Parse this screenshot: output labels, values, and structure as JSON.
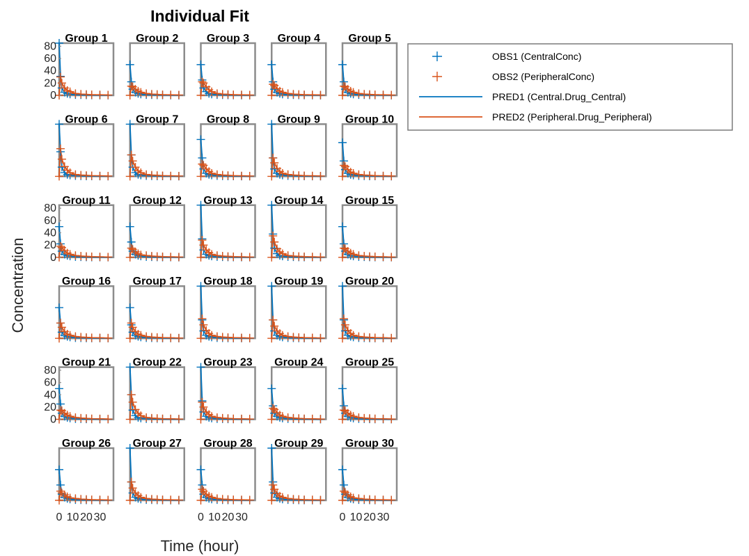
{
  "chart_data": {
    "type": "line",
    "title": "Individual Fit",
    "xlabel": "Time (hour)",
    "ylabel": "Concentration",
    "xlim": [
      0,
      40
    ],
    "ylim": [
      0,
      85
    ],
    "x_ticks": [
      0,
      10,
      20,
      30
    ],
    "x_tick_labels": [
      "0",
      "10",
      "20",
      "30"
    ],
    "y_ticks": [
      0,
      20,
      40,
      60,
      80
    ],
    "y_tick_labels": [
      "0",
      "20",
      "40",
      "60",
      "80"
    ],
    "grid": false,
    "legend_position": "outside-top-right",
    "series_meta": [
      {
        "key": "obs1",
        "name": "OBS1 (CentralConc)",
        "color": "#0072BD",
        "style": "marker-plus"
      },
      {
        "key": "obs2",
        "name": "OBS2 (PeripheralConc)",
        "color": "#D95319",
        "style": "marker-plus"
      },
      {
        "key": "pred1",
        "name": "PRED1 (Central.Drug_Central)",
        "color": "#0072BD",
        "style": "line"
      },
      {
        "key": "pred2",
        "name": "PRED2 (Peripheral.Drug_Peripheral)",
        "color": "#D95319",
        "style": "line"
      }
    ],
    "sample_times": [
      0,
      1,
      2,
      4,
      6,
      8,
      12,
      16,
      20,
      24,
      30,
      36
    ],
    "panels": [
      {
        "title": "Group 1",
        "central": [
          85,
          31,
          12,
          5,
          3,
          2,
          1,
          0.8,
          0.5,
          0.4,
          0.3,
          0.2
        ],
        "peripheral": [
          0,
          30,
          20,
          12,
          8,
          6,
          3,
          2,
          1.5,
          1,
          0.8,
          0.5
        ]
      },
      {
        "title": "Group 2",
        "central": [
          50,
          22,
          10,
          5,
          3,
          2,
          1,
          0.8,
          0.5,
          0.4,
          0.3,
          0.2
        ],
        "peripheral": [
          0,
          15,
          14,
          10,
          7,
          5,
          3,
          2,
          1.5,
          1,
          0.8,
          0.5
        ]
      },
      {
        "title": "Group 3",
        "central": [
          50,
          25,
          12,
          6,
          3,
          2,
          1,
          0.8,
          0.5,
          0.4,
          0.3,
          0.2
        ],
        "peripheral": [
          0,
          22,
          20,
          14,
          9,
          6,
          3,
          2,
          1.5,
          1,
          0.8,
          0.5
        ]
      },
      {
        "title": "Group 4",
        "central": [
          50,
          22,
          10,
          5,
          3,
          2,
          1,
          0.8,
          0.5,
          0.4,
          0.3,
          0.2
        ],
        "peripheral": [
          0,
          18,
          16,
          11,
          7,
          5,
          3,
          2,
          1.5,
          1,
          0.8,
          0.5
        ]
      },
      {
        "title": "Group 5",
        "central": [
          50,
          22,
          10,
          5,
          3,
          2,
          1,
          0.8,
          0.5,
          0.4,
          0.3,
          0.2
        ],
        "peripheral": [
          0,
          15,
          14,
          10,
          7,
          5,
          3,
          2,
          1.5,
          1,
          0.8,
          0.5
        ]
      },
      {
        "title": "Group 6",
        "central": [
          85,
          40,
          15,
          6,
          3,
          2,
          1,
          0.8,
          0.5,
          0.4,
          0.3,
          0.2
        ],
        "peripheral": [
          0,
          45,
          28,
          16,
          10,
          6,
          3,
          2,
          1.5,
          1,
          0.8,
          0.5
        ]
      },
      {
        "title": "Group 7",
        "central": [
          85,
          35,
          15,
          6,
          3,
          2,
          1,
          0.8,
          0.5,
          0.4,
          0.3,
          0.2
        ],
        "peripheral": [
          0,
          35,
          25,
          15,
          9,
          6,
          3,
          2,
          1.5,
          1,
          0.8,
          0.5
        ]
      },
      {
        "title": "Group 8",
        "central": [
          60,
          30,
          12,
          5,
          3,
          2,
          1,
          0.8,
          0.5,
          0.4,
          0.3,
          0.2
        ],
        "peripheral": [
          0,
          20,
          18,
          12,
          8,
          5,
          3,
          2,
          1.5,
          1,
          0.8,
          0.5
        ]
      },
      {
        "title": "Group 9",
        "central": [
          85,
          30,
          12,
          5,
          3,
          2,
          1,
          0.8,
          0.5,
          0.4,
          0.3,
          0.2
        ],
        "peripheral": [
          0,
          30,
          22,
          13,
          8,
          5,
          3,
          2,
          1.5,
          1,
          0.8,
          0.5
        ]
      },
      {
        "title": "Group 10",
        "central": [
          55,
          25,
          11,
          5,
          3,
          2,
          1,
          0.8,
          0.5,
          0.4,
          0.3,
          0.2
        ],
        "peripheral": [
          0,
          18,
          16,
          11,
          7,
          5,
          3,
          2,
          1.5,
          1,
          0.8,
          0.5
        ]
      },
      {
        "title": "Group 11",
        "central": [
          50,
          22,
          10,
          5,
          3,
          2,
          1,
          0.8,
          0.5,
          0.4,
          0.3,
          0.2
        ],
        "peripheral": [
          0,
          18,
          16,
          11,
          7,
          5,
          3,
          2,
          1.5,
          1,
          0.8,
          0.5
        ]
      },
      {
        "title": "Group 12",
        "central": [
          50,
          25,
          10,
          5,
          3,
          2,
          1,
          0.8,
          0.5,
          0.4,
          0.3,
          0.2
        ],
        "peripheral": [
          0,
          15,
          13,
          9,
          6,
          4,
          3,
          2,
          1.5,
          1,
          0.8,
          0.5
        ]
      },
      {
        "title": "Group 13",
        "central": [
          85,
          30,
          12,
          5,
          3,
          2,
          1,
          0.8,
          0.5,
          0.4,
          0.3,
          0.2
        ],
        "peripheral": [
          0,
          28,
          20,
          12,
          8,
          5,
          3,
          2,
          1.5,
          1,
          0.8,
          0.5
        ]
      },
      {
        "title": "Group 14",
        "central": [
          85,
          38,
          15,
          6,
          3,
          2,
          1,
          0.8,
          0.5,
          0.4,
          0.3,
          0.2
        ],
        "peripheral": [
          0,
          35,
          25,
          14,
          9,
          6,
          3,
          2,
          1.5,
          1,
          0.8,
          0.5
        ]
      },
      {
        "title": "Group 15",
        "central": [
          50,
          22,
          10,
          5,
          3,
          2,
          1,
          0.8,
          0.5,
          0.4,
          0.3,
          0.2
        ],
        "peripheral": [
          0,
          15,
          14,
          10,
          7,
          5,
          3,
          2,
          1.5,
          1,
          0.8,
          0.5
        ]
      },
      {
        "title": "Group 16",
        "central": [
          50,
          25,
          10,
          5,
          3,
          2,
          1,
          0.8,
          0.5,
          0.4,
          0.3,
          0.2
        ],
        "peripheral": [
          0,
          25,
          18,
          11,
          7,
          5,
          3,
          2,
          1.5,
          1,
          0.8,
          0.5
        ]
      },
      {
        "title": "Group 17",
        "central": [
          50,
          22,
          10,
          5,
          3,
          2,
          1,
          0.8,
          0.5,
          0.4,
          0.3,
          0.2
        ],
        "peripheral": [
          0,
          25,
          18,
          11,
          7,
          5,
          3,
          2,
          1.5,
          1,
          0.8,
          0.5
        ]
      },
      {
        "title": "Group 18",
        "central": [
          85,
          30,
          12,
          5,
          3,
          2,
          1,
          0.8,
          0.5,
          0.4,
          0.3,
          0.2
        ],
        "peripheral": [
          0,
          32,
          22,
          13,
          8,
          5,
          3,
          2,
          1.5,
          1,
          0.8,
          0.5
        ]
      },
      {
        "title": "Group 19",
        "central": [
          85,
          30,
          12,
          5,
          3,
          2,
          1,
          0.8,
          0.5,
          0.4,
          0.3,
          0.2
        ],
        "peripheral": [
          0,
          30,
          20,
          12,
          8,
          5,
          3,
          2,
          1.5,
          1,
          0.8,
          0.5
        ]
      },
      {
        "title": "Group 20",
        "central": [
          85,
          30,
          12,
          5,
          3,
          2,
          1,
          0.8,
          0.5,
          0.4,
          0.3,
          0.2
        ],
        "peripheral": [
          0,
          32,
          22,
          13,
          8,
          5,
          3,
          2,
          1.5,
          1,
          0.8,
          0.5
        ]
      },
      {
        "title": "Group 21",
        "central": [
          50,
          25,
          10,
          5,
          3,
          2,
          1,
          0.8,
          0.5,
          0.4,
          0.3,
          0.2
        ],
        "peripheral": [
          0,
          15,
          14,
          10,
          7,
          5,
          3,
          2,
          1.5,
          1,
          0.8,
          0.5
        ]
      },
      {
        "title": "Group 22",
        "central": [
          85,
          40,
          15,
          6,
          3,
          2,
          1,
          0.8,
          0.5,
          0.4,
          0.3,
          0.2
        ],
        "peripheral": [
          0,
          40,
          28,
          16,
          10,
          6,
          3,
          2,
          1.5,
          1,
          0.8,
          0.5
        ]
      },
      {
        "title": "Group 23",
        "central": [
          85,
          30,
          12,
          5,
          3,
          2,
          1,
          0.8,
          0.5,
          0.4,
          0.3,
          0.2
        ],
        "peripheral": [
          0,
          28,
          20,
          12,
          8,
          5,
          3,
          2,
          1.5,
          1,
          0.8,
          0.5
        ]
      },
      {
        "title": "Group 24",
        "central": [
          50,
          22,
          10,
          5,
          3,
          2,
          1,
          0.8,
          0.5,
          0.4,
          0.3,
          0.2
        ],
        "peripheral": [
          0,
          18,
          16,
          11,
          7,
          5,
          3,
          2,
          1.5,
          1,
          0.8,
          0.5
        ]
      },
      {
        "title": "Group 25",
        "central": [
          50,
          22,
          10,
          5,
          3,
          2,
          1,
          0.8,
          0.5,
          0.4,
          0.3,
          0.2
        ],
        "peripheral": [
          0,
          15,
          14,
          10,
          7,
          5,
          3,
          2,
          1.5,
          1,
          0.8,
          0.5
        ]
      },
      {
        "title": "Group 26",
        "central": [
          50,
          25,
          10,
          5,
          3,
          2,
          1,
          0.8,
          0.5,
          0.4,
          0.3,
          0.2
        ],
        "peripheral": [
          0,
          15,
          12,
          9,
          6,
          4,
          3,
          2,
          1.5,
          1,
          0.8,
          0.5
        ]
      },
      {
        "title": "Group 27",
        "central": [
          85,
          30,
          12,
          5,
          3,
          2,
          1,
          0.8,
          0.5,
          0.4,
          0.3,
          0.2
        ],
        "peripheral": [
          0,
          30,
          20,
          12,
          8,
          5,
          3,
          2,
          1.5,
          1,
          0.8,
          0.5
        ]
      },
      {
        "title": "Group 28",
        "central": [
          50,
          25,
          10,
          5,
          3,
          2,
          1,
          0.8,
          0.5,
          0.4,
          0.3,
          0.2
        ],
        "peripheral": [
          0,
          18,
          15,
          10,
          7,
          5,
          3,
          2,
          1.5,
          1,
          0.8,
          0.5
        ]
      },
      {
        "title": "Group 29",
        "central": [
          85,
          30,
          12,
          5,
          3,
          2,
          1,
          0.8,
          0.5,
          0.4,
          0.3,
          0.2
        ],
        "peripheral": [
          0,
          25,
          18,
          11,
          7,
          5,
          3,
          2,
          1.5,
          1,
          0.8,
          0.5
        ]
      },
      {
        "title": "Group 30",
        "central": [
          50,
          25,
          10,
          5,
          3,
          2,
          1,
          0.8,
          0.5,
          0.4,
          0.3,
          0.2
        ],
        "peripheral": [
          0,
          15,
          13,
          9,
          6,
          4,
          3,
          2,
          1.5,
          1,
          0.8,
          0.5
        ]
      }
    ],
    "y_tick_rows": [
      0,
      2,
      4
    ],
    "x_tick_cols": [
      0,
      2,
      4
    ]
  }
}
